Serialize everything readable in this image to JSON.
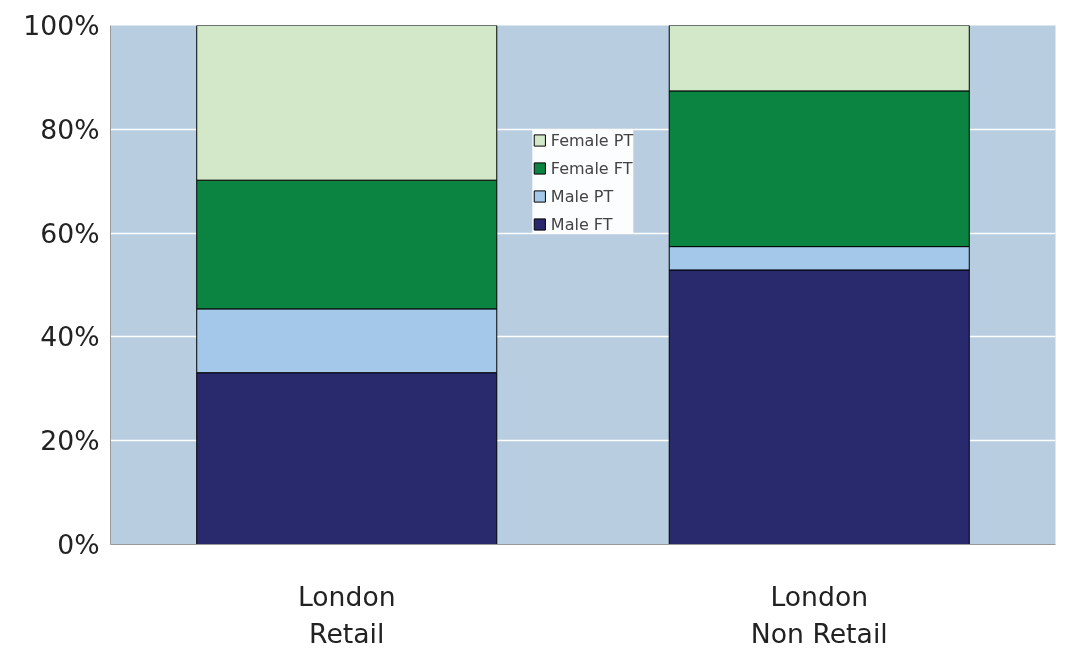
{
  "chart_data": {
    "type": "bar",
    "stacked": true,
    "categories": [
      "London\nRetail",
      "London\nNon Retail"
    ],
    "series": [
      {
        "name": "Male FT",
        "color": "#29296e",
        "values": [
          33.1,
          52.9
        ]
      },
      {
        "name": "Male PT",
        "color": "#a3c8ea",
        "values": [
          12.3,
          4.5
        ]
      },
      {
        "name": "Female FT",
        "color": "#0b8442",
        "values": [
          24.8,
          30.0
        ]
      },
      {
        "name": "Female PT",
        "color": "#d3e8c8",
        "values": [
          29.8,
          12.6
        ]
      }
    ],
    "ylim": [
      0,
      100
    ],
    "yticks": [
      {
        "value": 0,
        "label": "0%"
      },
      {
        "value": 20,
        "label": "20%"
      },
      {
        "value": 40,
        "label": "40%"
      },
      {
        "value": 60,
        "label": "60%"
      },
      {
        "value": 80,
        "label": "80%"
      },
      {
        "value": 100,
        "label": "100%"
      }
    ],
    "grid": "y",
    "legend": "top"
  }
}
